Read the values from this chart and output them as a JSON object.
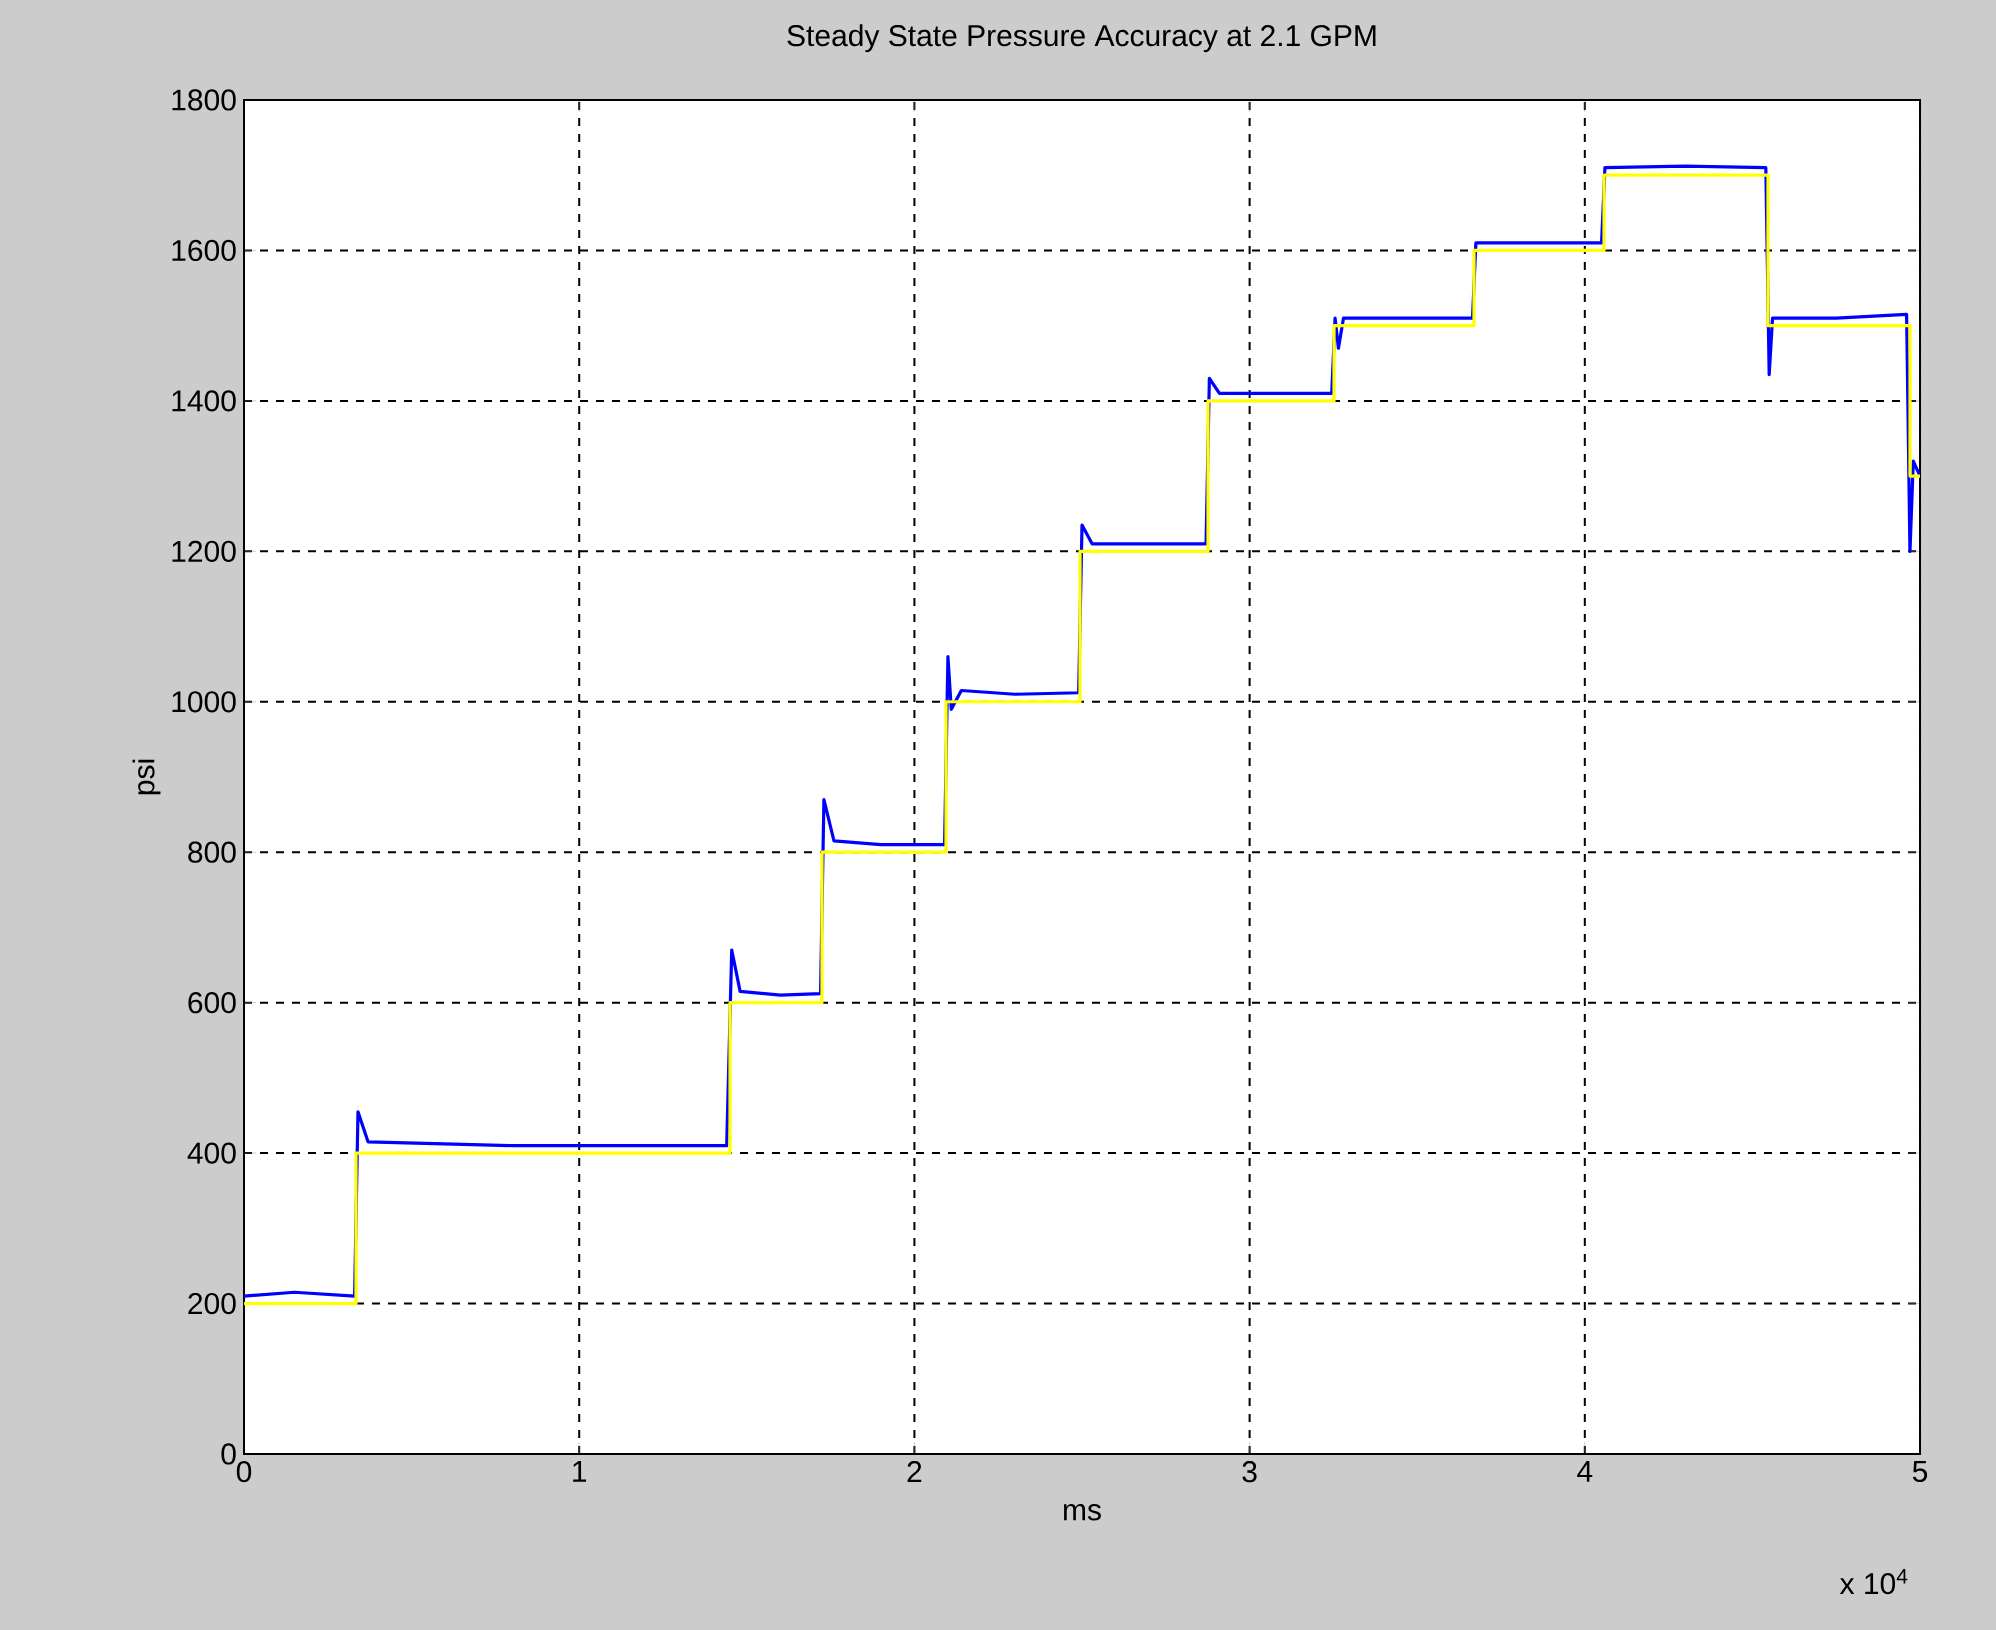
{
  "chart_data": {
    "type": "line",
    "title": "Steady State Pressure Accuracy at 2.1 GPM",
    "xlabel": "ms",
    "ylabel": "psi",
    "annotations": [
      "x 10$^{4}$"
    ],
    "xlim": [
      0,
      5
    ],
    "ylim": [
      0,
      1800
    ],
    "xticks": [
      0,
      1,
      2,
      3,
      4,
      5
    ],
    "yticks": [
      0,
      200,
      400,
      600,
      800,
      1000,
      1200,
      1400,
      1600,
      1800
    ],
    "grid": true,
    "series": [
      {
        "color": "#0000ff",
        "x": [
          0,
          0.15,
          0.33,
          0.34,
          0.37,
          0.8,
          1.44,
          1.455,
          1.48,
          1.6,
          1.72,
          1.73,
          1.76,
          1.9,
          2.09,
          2.1,
          2.11,
          2.14,
          2.3,
          2.49,
          2.5,
          2.53,
          2.7,
          2.87,
          2.88,
          2.91,
          3.1,
          3.245,
          3.255,
          3.265,
          3.28,
          3.5,
          3.665,
          3.675,
          3.85,
          4.05,
          4.06,
          4.3,
          4.54,
          4.55,
          4.56,
          4.75,
          4.96,
          4.97,
          4.98,
          5.0
        ],
        "values": [
          210,
          215,
          210,
          455,
          415,
          410,
          410,
          670,
          615,
          610,
          612,
          870,
          815,
          810,
          810,
          1060,
          990,
          1015,
          1010,
          1012,
          1235,
          1210,
          1210,
          1210,
          1430,
          1410,
          1410,
          1410,
          1510,
          1470,
          1510,
          1510,
          1510,
          1610,
          1610,
          1610,
          1710,
          1712,
          1710,
          1435,
          1510,
          1510,
          1515,
          1200,
          1320,
          1300
        ]
      },
      {
        "type": "step",
        "color": "#ffff00",
        "x": [
          0,
          0.3341,
          1.4499,
          1.7243,
          2.0943,
          2.494,
          2.8759,
          3.2518,
          3.6694,
          4.0573,
          4.5465,
          4.9702,
          5.0
        ],
        "values": [
          200,
          400,
          600,
          800,
          1000,
          1200,
          1400,
          1500,
          1600,
          1700,
          1500,
          1300,
          1300
        ]
      }
    ]
  }
}
